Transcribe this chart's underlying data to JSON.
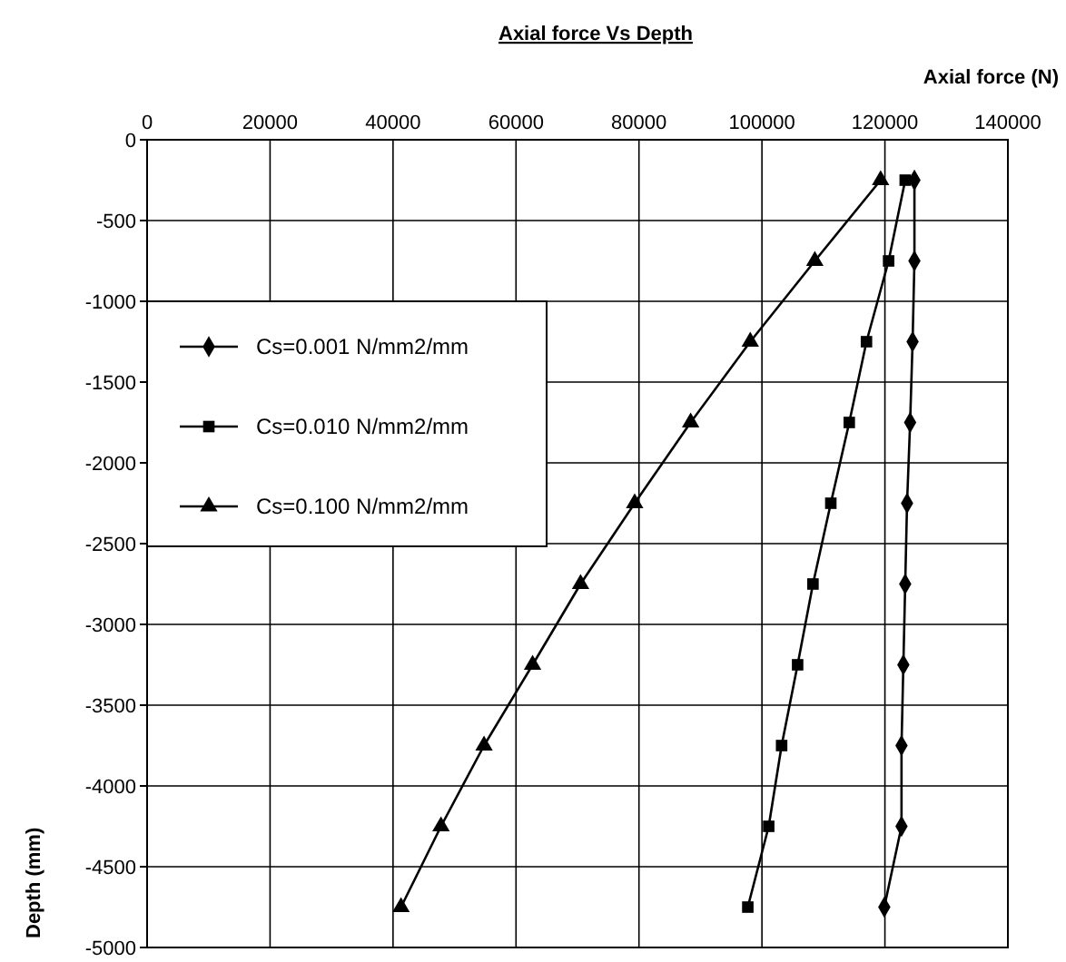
{
  "chart_data": {
    "type": "line",
    "title": "Axial force Vs Depth",
    "xlabel": "Axial force (N)",
    "ylabel": "Depth (mm)",
    "xlim": [
      0,
      140000
    ],
    "xticks": [
      0,
      20000,
      40000,
      60000,
      80000,
      100000,
      120000,
      140000
    ],
    "ylim": [
      -5000,
      0
    ],
    "yticks": [
      -5000,
      -4500,
      -4000,
      -3500,
      -3000,
      -2500,
      -2000,
      -1500,
      -1000,
      -500,
      0
    ],
    "grid": true,
    "legend": "left",
    "line_style": "solid",
    "series": [
      {
        "name": "Cs=0.001 N/mm2/mm",
        "color": "#000000",
        "marker": "diamond",
        "x": [
          124800,
          124800,
          124500,
          124100,
          123600,
          123300,
          123000,
          122700,
          122700,
          119900
        ],
        "values": [
          -250,
          -750,
          -1250,
          -1750,
          -2250,
          -2750,
          -3250,
          -3750,
          -4250,
          -4750
        ]
      },
      {
        "name": "Cs=0.010 N/mm2/mm",
        "color": "#000000",
        "marker": "square",
        "x": [
          123300,
          120600,
          117000,
          114200,
          111200,
          108300,
          105800,
          103200,
          101100,
          97700
        ],
        "values": [
          -250,
          -750,
          -1250,
          -1750,
          -2250,
          -2750,
          -3250,
          -3750,
          -4250,
          -4750
        ]
      },
      {
        "name": "Cs=0.100 N/mm2/mm",
        "color": "#000000",
        "marker": "triangle",
        "x": [
          119300,
          108600,
          98100,
          88400,
          79300,
          70500,
          62700,
          54800,
          47800,
          41300
        ],
        "values": [
          -250,
          -750,
          -1250,
          -1750,
          -2250,
          -2750,
          -3250,
          -3750,
          -4250,
          -4750
        ]
      }
    ]
  }
}
